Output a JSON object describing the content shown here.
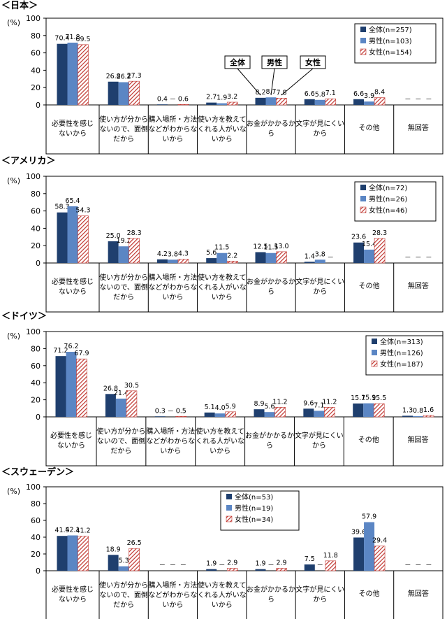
{
  "colors": {
    "all": "#1F3F6E",
    "male": "#5B86C4",
    "female": "#C0342E"
  },
  "chart_data": [
    {
      "type": "bar",
      "title": "＜日本＞",
      "unit": "(%)",
      "ylim": [
        0,
        100
      ],
      "yticks": [
        "0",
        "20",
        "40",
        "60",
        "80",
        "100"
      ],
      "categories": [
        "必要性を感じないから",
        "使い方が分からないので、面倒だから",
        "購入場所・方法などがわからないから",
        "使い方を教えてくれる人がいないから",
        "お金がかかるから",
        "文字が見にくいから",
        "その他",
        "無回答"
      ],
      "series": [
        {
          "name": "全体(n=257)",
          "values": [
            70.4,
            26.8,
            0.4,
            2.7,
            8.2,
            6.6,
            6.6,
            null
          ],
          "labels": [
            "70.4",
            "26.8",
            "0.4",
            "2.7",
            "8.2",
            "6.6",
            "6.6",
            "－"
          ]
        },
        {
          "name": "男性(n=103)",
          "values": [
            71.8,
            26.2,
            null,
            1.9,
            8.7,
            5.8,
            3.9,
            null
          ],
          "labels": [
            "71.8",
            "26.2",
            "－",
            "1.9",
            "8.7",
            "5.8",
            "3.9",
            "－"
          ]
        },
        {
          "name": "女性(n=154)",
          "values": [
            69.5,
            27.3,
            0.6,
            3.2,
            7.8,
            7.1,
            8.4,
            null
          ],
          "labels": [
            "69.5",
            "27.3",
            "0.6",
            "3.2",
            "7.8",
            "7.1",
            "8.4",
            "－"
          ]
        }
      ],
      "callouts": [
        "全体",
        "男性",
        "女性"
      ]
    },
    {
      "type": "bar",
      "title": "＜アメリカ＞",
      "unit": "(%)",
      "ylim": [
        0,
        100
      ],
      "yticks": [
        "0",
        "20",
        "40",
        "60",
        "80",
        "100"
      ],
      "categories": [
        "必要性を感じないから",
        "使い方が分からないので、面倒だから",
        "購入場所・方法などがわからないから",
        "使い方を教えてくれる人がいないから",
        "お金がかかるから",
        "文字が見にくいから",
        "その他",
        "無回答"
      ],
      "series": [
        {
          "name": "全体(n=72)",
          "values": [
            58.3,
            25.0,
            4.2,
            5.6,
            12.5,
            1.4,
            23.6,
            null
          ],
          "labels": [
            "58.3",
            "25.0",
            "4.2",
            "5.6",
            "12.5",
            "1.4",
            "23.6",
            "－"
          ]
        },
        {
          "name": "男性(n=26)",
          "values": [
            65.4,
            19.2,
            3.8,
            11.5,
            11.5,
            3.8,
            15.4,
            null
          ],
          "labels": [
            "65.4",
            "19.2",
            "3.8",
            "11.5",
            "11.5",
            "3.8",
            "15.4",
            "－"
          ]
        },
        {
          "name": "女性(n=46)",
          "values": [
            54.3,
            28.3,
            4.3,
            2.2,
            13.0,
            null,
            28.3,
            null
          ],
          "labels": [
            "54.3",
            "28.3",
            "4.3",
            "2.2",
            "13.0",
            "－",
            "28.3",
            "－"
          ]
        }
      ]
    },
    {
      "type": "bar",
      "title": "＜ドイツ＞",
      "unit": "(%)",
      "ylim": [
        0,
        100
      ],
      "yticks": [
        "0",
        "20",
        "40",
        "60",
        "80",
        "100"
      ],
      "categories": [
        "必要性を感じないから",
        "使い方が分からないので、面倒だから",
        "購入場所・方法などがわからないから",
        "使い方を教えてくれる人がいないから",
        "お金がかかるから",
        "文字が見にくいから",
        "その他",
        "無回答"
      ],
      "series": [
        {
          "name": "全体(n=313)",
          "values": [
            71.2,
            26.8,
            0.3,
            5.1,
            8.9,
            9.6,
            15.7,
            1.3
          ],
          "labels": [
            "71.2",
            "26.8",
            "0.3",
            "5.1",
            "8.9",
            "9.6",
            "15.7",
            "1.3"
          ]
        },
        {
          "name": "男性(n=126)",
          "values": [
            76.2,
            21.4,
            null,
            4.0,
            5.6,
            7.1,
            15.9,
            0.8
          ],
          "labels": [
            "76.2",
            "21.4",
            "－",
            "4.0",
            "5.6",
            "7.1",
            "15.9",
            "0.8"
          ]
        },
        {
          "name": "女性(n=187)",
          "values": [
            67.9,
            30.5,
            0.5,
            5.9,
            11.2,
            11.2,
            15.5,
            1.6
          ],
          "labels": [
            "67.9",
            "30.5",
            "0.5",
            "5.9",
            "11.2",
            "11.2",
            "15.5",
            "1.6"
          ]
        }
      ]
    },
    {
      "type": "bar",
      "title": "＜スウェーデン＞",
      "unit": "(%)",
      "ylim": [
        0,
        100
      ],
      "yticks": [
        "0",
        "20",
        "40",
        "60",
        "80",
        "100"
      ],
      "categories": [
        "必要性を感じないから",
        "使い方が分からないので、面倒だから",
        "購入場所・方法などがわからないから",
        "使い方を教えてくれる人がいないから",
        "お金がかかるから",
        "文字が見にくいから",
        "その他",
        "無回答"
      ],
      "series": [
        {
          "name": "全体(n=53)",
          "values": [
            41.5,
            18.9,
            null,
            1.9,
            1.9,
            7.5,
            39.6,
            null
          ],
          "labels": [
            "41.5",
            "18.9",
            "－",
            "1.9",
            "1.9",
            "7.5",
            "39.6",
            "－"
          ]
        },
        {
          "name": "男性(n=19)",
          "values": [
            42.1,
            5.3,
            null,
            null,
            null,
            null,
            57.9,
            null
          ],
          "labels": [
            "42.1",
            "5.3",
            "－",
            "－",
            "－",
            "－",
            "57.9",
            "－"
          ]
        },
        {
          "name": "女性(n=34)",
          "values": [
            41.2,
            26.5,
            null,
            2.9,
            2.9,
            11.8,
            29.4,
            null
          ],
          "labels": [
            "41.2",
            "26.5",
            "－",
            "2.9",
            "2.9",
            "11.8",
            "29.4",
            "－"
          ]
        }
      ]
    }
  ]
}
